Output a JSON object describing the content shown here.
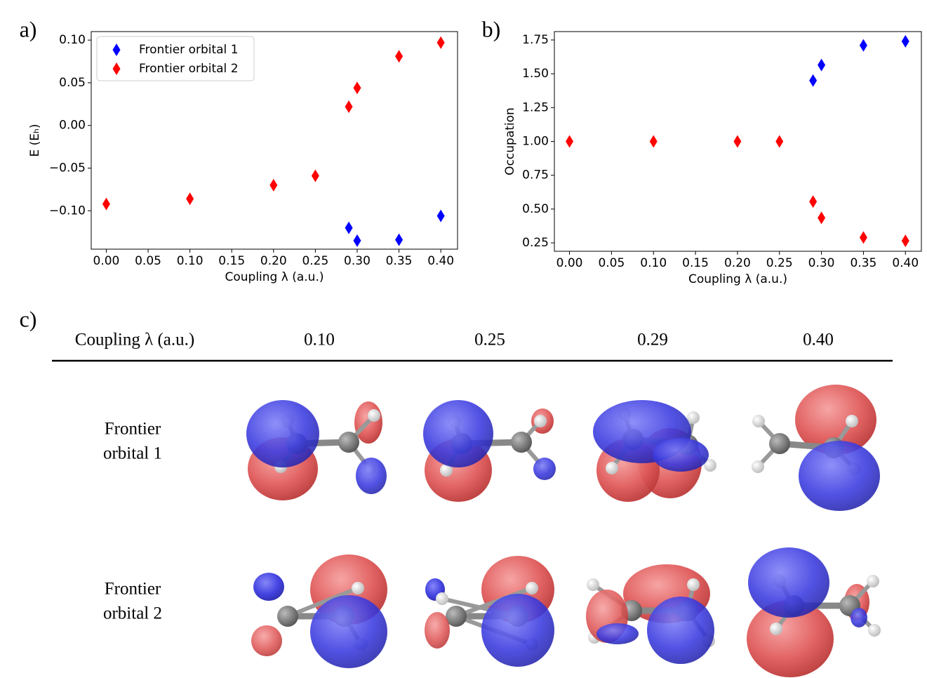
{
  "chart_data": [
    {
      "type": "scatter",
      "panel_label": "a)",
      "xlabel": "Coupling λ (a.u.)",
      "ylabel": "E (Eₕ)",
      "xlim": [
        -0.018,
        0.42
      ],
      "ylim": [
        -0.145,
        0.11
      ],
      "xticks": [
        {
          "value": 0,
          "label": "0.00"
        },
        0.05,
        {
          "value": 0.1,
          "label": "0.10"
        },
        0.15,
        {
          "value": 0.2,
          "label": "0.20"
        },
        0.25,
        {
          "value": 0.3,
          "label": "0.30"
        },
        0.35,
        {
          "value": 0.4,
          "label": "0.40"
        }
      ],
      "yticks": [
        {
          "value": -0.1,
          "label": "−0.10"
        },
        {
          "value": -0.05,
          "label": "−0.05"
        },
        {
          "value": 0,
          "label": "0.00"
        },
        0.05,
        {
          "value": 0.1,
          "label": "0.10"
        }
      ],
      "grid": false,
      "legend": "upper left",
      "series": [
        {
          "name": "Frontier orbital 1",
          "color": "#0000ff",
          "x": [
            0.29,
            0.3,
            0.35,
            0.4
          ],
          "values": [
            -0.12,
            -0.135,
            -0.134,
            -0.106
          ]
        },
        {
          "name": "Frontier orbital 2",
          "color": "#ff0000",
          "x": [
            0,
            0.1,
            0.2,
            0.25,
            0.29,
            0.3,
            0.35,
            0.4
          ],
          "values": [
            -0.092,
            -0.086,
            -0.07,
            -0.059,
            0.022,
            0.044,
            0.081,
            0.097
          ]
        }
      ]
    },
    {
      "type": "scatter",
      "panel_label": "b)",
      "xlabel": "Coupling λ (a.u.)",
      "ylabel": "Occupation",
      "xlim": [
        -0.018,
        0.419
      ],
      "ylim": [
        0.188,
        1.812
      ],
      "xticks": [
        {
          "value": 0,
          "label": "0.00"
        },
        0.05,
        {
          "value": 0.1,
          "label": "0.10"
        },
        0.15,
        {
          "value": 0.2,
          "label": "0.20"
        },
        0.25,
        {
          "value": 0.3,
          "label": "0.30"
        },
        0.35,
        {
          "value": 0.4,
          "label": "0.40"
        }
      ],
      "yticks": [
        0.25,
        {
          "value": 0.5,
          "label": "0.50"
        },
        0.75,
        {
          "value": 1,
          "label": "1.00"
        },
        1.25,
        {
          "value": 1.5,
          "label": "1.50"
        },
        1.75
      ],
      "grid": false,
      "series": [
        {
          "color": "#0000ff",
          "x": [
            0.29,
            0.3,
            0.35,
            0.4
          ],
          "values": [
            1.45,
            1.565,
            1.71,
            1.74
          ]
        },
        {
          "color": "#ff0000",
          "x": [
            0,
            0.1,
            0.2,
            0.25,
            0.29,
            0.3,
            0.35,
            0.4
          ],
          "values": [
            1,
            1,
            1,
            1,
            0.555,
            0.435,
            0.29,
            0.265
          ]
        }
      ]
    }
  ],
  "orbital_table": {
    "panel_label": "c)",
    "header": "Coupling λ (a.u.)",
    "columns": [
      "0.10",
      "0.25",
      "0.29",
      "0.40"
    ],
    "rows": [
      {
        "label": [
          "Frontier",
          "orbital 1"
        ]
      },
      {
        "label": [
          "Frontier",
          "orbital 2"
        ]
      }
    ]
  }
}
